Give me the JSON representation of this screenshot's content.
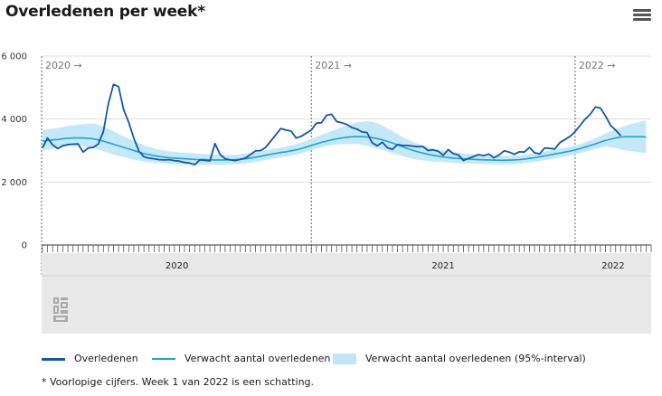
{
  "header": {
    "title": "Overledenen per week*"
  },
  "colors": {
    "observed": "#1457a8",
    "expected": "#1aa4d3",
    "band": "#bfe5f7",
    "navigator_bg": "#e8e8e8"
  },
  "icons": {
    "menu": "hamburger-menu-icon",
    "logo": "cbs-logo-icon"
  },
  "legend": {
    "observed": "Overledenen",
    "expected": "Verwacht aantal overledenen",
    "band": "Verwacht aantal overledenen (95%-interval)"
  },
  "footnote": "* Voorlopige cijfers. Week 1 van 2022 is een schatting.",
  "chart_data": {
    "type": "line",
    "x_unit": "week",
    "ylim": [
      0,
      6000
    ],
    "yticks": [
      "0",
      "2 000",
      "4 000",
      "6 000"
    ],
    "year_markers": [
      "2020 →",
      "2021 →",
      "2022 →"
    ],
    "navigator_years": [
      "2020",
      "2021",
      "2022"
    ],
    "series": [
      {
        "name": "Overledenen",
        "values": [
          3090,
          3400,
          3180,
          3060,
          3150,
          3190,
          3200,
          3210,
          2950,
          3080,
          3100,
          3210,
          3600,
          4500,
          5100,
          5030,
          4300,
          3900,
          3400,
          2980,
          2800,
          2760,
          2740,
          2710,
          2700,
          2710,
          2680,
          2660,
          2620,
          2600,
          2550,
          2700,
          2690,
          2670,
          3220,
          2880,
          2740,
          2700,
          2680,
          2720,
          2760,
          2870,
          2990,
          3000,
          3100,
          3300,
          3500,
          3700,
          3650,
          3620,
          3400,
          3450,
          3550,
          3650,
          3870,
          3880,
          4120,
          4150,
          3920,
          3880,
          3830,
          3730,
          3680,
          3590,
          3570,
          3250,
          3150,
          3260,
          3090,
          3040,
          3190,
          3160,
          3160,
          3140,
          3120,
          3130,
          3000,
          3020,
          2980,
          2850,
          3030,
          2900,
          2860,
          2680,
          2750,
          2810,
          2870,
          2840,
          2890,
          2770,
          2860,
          2990,
          2950,
          2880,
          2960,
          2950,
          3100,
          2930,
          2890,
          3080,
          3070,
          3050,
          3250,
          3350,
          3450,
          3600,
          3800,
          4000,
          4150,
          4380,
          4350,
          4100,
          3800,
          3650,
          3470
        ]
      },
      {
        "name": "Verwacht aantal overledenen",
        "values": [
          3300,
          3320,
          3340,
          3350,
          3370,
          3390,
          3400,
          3400,
          3400,
          3390,
          3370,
          3340,
          3300,
          3250,
          3200,
          3150,
          3100,
          3050,
          3000,
          2950,
          2900,
          2870,
          2840,
          2810,
          2790,
          2770,
          2760,
          2750,
          2740,
          2730,
          2720,
          2715,
          2710,
          2705,
          2700,
          2700,
          2700,
          2705,
          2710,
          2720,
          2740,
          2760,
          2790,
          2820,
          2850,
          2880,
          2910,
          2940,
          2960,
          2990,
          3020,
          3060,
          3110,
          3160,
          3210,
          3260,
          3300,
          3340,
          3370,
          3400,
          3420,
          3440,
          3440,
          3440,
          3430,
          3410,
          3380,
          3340,
          3290,
          3240,
          3180,
          3120,
          3060,
          3010,
          2960,
          2920,
          2880,
          2850,
          2820,
          2800,
          2780,
          2760,
          2750,
          2740,
          2730,
          2720,
          2710,
          2705,
          2700,
          2695,
          2690,
          2690,
          2695,
          2700,
          2710,
          2730,
          2750,
          2770,
          2800,
          2830,
          2860,
          2890,
          2920,
          2950,
          2980,
          3020,
          3060,
          3110,
          3160,
          3210,
          3270,
          3320,
          3360,
          3400,
          3430,
          3440,
          3440,
          3440,
          3435,
          3430
        ]
      },
      {
        "name": "Verwacht aantal overledenen (95%-interval)",
        "lower": [
          3000,
          3030,
          3060,
          3080,
          3110,
          3140,
          3150,
          3150,
          3140,
          3110,
          3080,
          3040,
          2980,
          2920,
          2870,
          2830,
          2790,
          2750,
          2710,
          2680,
          2650,
          2630,
          2610,
          2600,
          2590,
          2580,
          2570,
          2570,
          2565,
          2560,
          2555,
          2550,
          2550,
          2550,
          2550,
          2550,
          2550,
          2555,
          2560,
          2570,
          2590,
          2610,
          2640,
          2670,
          2700,
          2730,
          2760,
          2790,
          2810,
          2840,
          2870,
          2910,
          2960,
          3010,
          3060,
          3100,
          3140,
          3170,
          3190,
          3200,
          3210,
          3210,
          3200,
          3180,
          3150,
          3110,
          3070,
          3020,
          2970,
          2920,
          2870,
          2820,
          2780,
          2740,
          2710,
          2690,
          2670,
          2650,
          2640,
          2630,
          2620,
          2610,
          2600,
          2595,
          2590,
          2585,
          2580,
          2575,
          2570,
          2565,
          2560,
          2560,
          2565,
          2570,
          2580,
          2600,
          2620,
          2640,
          2660,
          2690,
          2720,
          2750,
          2780,
          2810,
          2840,
          2880,
          2920,
          2960,
          3010,
          3050,
          3090,
          3120,
          3100,
          3080,
          3040,
          3000,
          2980,
          2960,
          2940,
          2920
        ],
        "upper": [
          3650,
          3670,
          3700,
          3720,
          3750,
          3780,
          3800,
          3820,
          3840,
          3850,
          3850,
          3820,
          3760,
          3690,
          3610,
          3530,
          3450,
          3380,
          3310,
          3240,
          3170,
          3120,
          3070,
          3030,
          3000,
          2980,
          2960,
          2940,
          2930,
          2920,
          2910,
          2900,
          2890,
          2880,
          2870,
          2860,
          2860,
          2865,
          2870,
          2880,
          2900,
          2920,
          2950,
          2980,
          3010,
          3040,
          3070,
          3100,
          3130,
          3160,
          3200,
          3250,
          3310,
          3370,
          3440,
          3500,
          3560,
          3620,
          3680,
          3740,
          3800,
          3850,
          3890,
          3920,
          3930,
          3910,
          3860,
          3790,
          3710,
          3620,
          3520,
          3430,
          3350,
          3280,
          3220,
          3160,
          3110,
          3070,
          3030,
          3000,
          2970,
          2950,
          2930,
          2910,
          2900,
          2880,
          2870,
          2860,
          2850,
          2840,
          2830,
          2830,
          2835,
          2840,
          2850,
          2870,
          2890,
          2910,
          2940,
          2970,
          3000,
          3030,
          3060,
          3090,
          3120,
          3160,
          3200,
          3260,
          3320,
          3390,
          3460,
          3540,
          3610,
          3680,
          3740,
          3790,
          3840,
          3880,
          3920,
          3960
        ]
      }
    ]
  }
}
